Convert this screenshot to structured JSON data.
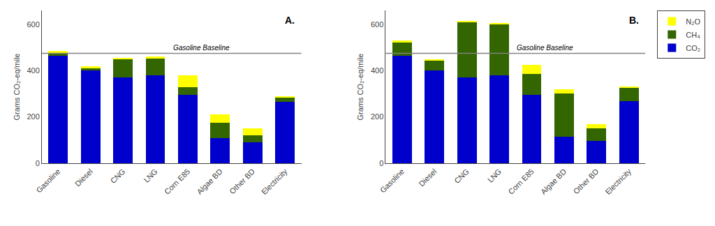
{
  "chart_data": [
    {
      "type": "bar",
      "stacked": true,
      "grid": false,
      "categories": [
        "Gasoline",
        "Diesel",
        "CNG",
        "LNG",
        "Corn E85",
        "Algae BD",
        "Other BD",
        "Electricity"
      ],
      "series": [
        {
          "name": "CO₂",
          "color": "#0000CC",
          "values": [
            465,
            400,
            370,
            380,
            295,
            110,
            90,
            265
          ]
        },
        {
          "name": "CH₄",
          "color": "#336600",
          "values": [
            10,
            10,
            80,
            75,
            35,
            65,
            30,
            20
          ]
        },
        {
          "name": "N₂O",
          "color": "#FFFF00",
          "values": [
            10,
            10,
            5,
            5,
            50,
            35,
            30,
            5
          ]
        }
      ],
      "reference_line": {
        "value": 475,
        "label": "Gasoline Baseline"
      },
      "panel_label": "A.",
      "ylabel": "Grams CO₂-eq/mile",
      "ylim": [
        0,
        660
      ],
      "yticks": [
        0,
        200,
        400,
        600
      ]
    },
    {
      "type": "bar",
      "stacked": true,
      "grid": false,
      "legend": "right",
      "categories": [
        "Gasoline",
        "Diesel",
        "CNG",
        "LNG",
        "Corn E85",
        "Algae BD",
        "Other BD",
        "Electricity"
      ],
      "series": [
        {
          "name": "CO₂",
          "color": "#0000CC",
          "values": [
            465,
            400,
            370,
            380,
            295,
            115,
            95,
            268
          ]
        },
        {
          "name": "CH₄",
          "color": "#336600",
          "values": [
            55,
            45,
            240,
            220,
            90,
            185,
            55,
            60
          ]
        },
        {
          "name": "N₂O",
          "color": "#FFFF00",
          "values": [
            10,
            5,
            5,
            5,
            40,
            20,
            20,
            5
          ]
        }
      ],
      "reference_line": {
        "value": 475,
        "label": "Gasoline Baseline"
      },
      "panel_label": "B.",
      "ylabel": "Grams CO₂-eq/mile",
      "ylim": [
        0,
        660
      ],
      "yticks": [
        0,
        200,
        400,
        600
      ]
    }
  ]
}
